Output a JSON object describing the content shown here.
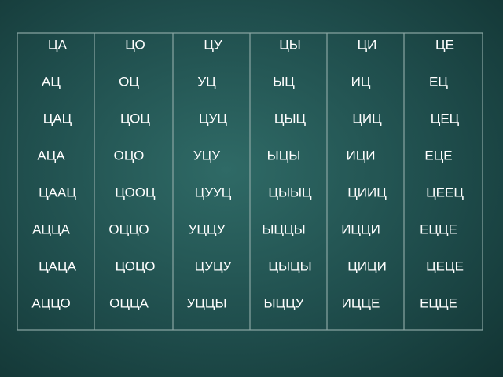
{
  "table": {
    "columns": [
      [
        "ЦА",
        "АЦ",
        "ЦАЦ",
        "АЦА",
        "ЦААЦ",
        "АЦЦА",
        "ЦАЦА",
        "АЦЦО"
      ],
      [
        "ЦО",
        "ОЦ",
        "ЦОЦ",
        "ОЦО",
        "ЦООЦ",
        "ОЦЦО",
        "ЦОЦО",
        "ОЦЦА"
      ],
      [
        "ЦУ",
        "УЦ",
        "ЦУЦ",
        "УЦУ",
        "ЦУУЦ",
        "УЦЦУ",
        "ЦУЦУ",
        "УЦЦЫ"
      ],
      [
        "ЦЫ",
        "ЫЦ",
        "ЦЫЦ",
        "ЫЦЫ",
        "ЦЫЫЦ",
        "ЫЦЦЫ",
        "ЦЫЦЫ",
        "ЫЦЦУ"
      ],
      [
        "ЦИ",
        "ИЦ",
        "ЦИЦ",
        "ИЦИ",
        "ЦИИЦ",
        "ИЦЦИ",
        "ЦИЦИ",
        "ИЦЦЕ"
      ],
      [
        "ЦЕ",
        "ЕЦ",
        "ЦЕЦ",
        "ЕЦЕ",
        "ЦЕЕЦ",
        "ЕЦЦЕ",
        "ЦЕЦЕ",
        "ЕЦЦЕ"
      ]
    ]
  }
}
